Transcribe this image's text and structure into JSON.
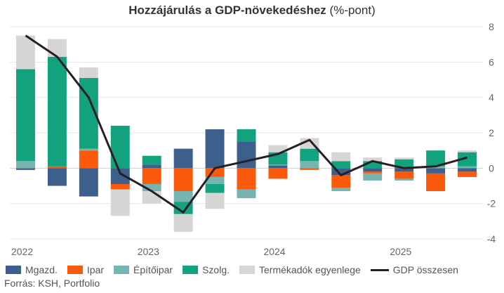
{
  "title": {
    "bold": "Hozzájárulás a GDP-növekedéshez",
    "normal": "(%-pont)"
  },
  "source": "Forrás: KSH, Portfolio",
  "colors": {
    "mgazd": "#3c5f8c",
    "ipar": "#fb5a0c",
    "epitoipar": "#76b4b2",
    "szolg": "#12a27d",
    "termekadok": "#d6d6d6",
    "gdp": "#2a1d24",
    "grid": "#e6e6e6",
    "zero": "#cfcfcf",
    "tick": "#666666"
  },
  "chart_data": {
    "type": "bar",
    "stacked": true,
    "categories": [
      "2022Q1",
      "2022Q2",
      "2022Q3",
      "2022Q4",
      "2023Q1",
      "2023Q2",
      "2023Q3",
      "2023Q4",
      "2024Q1",
      "2024Q2",
      "2024Q3",
      "2024Q4",
      "2025Q1",
      "2025Q2",
      "2025Q3"
    ],
    "year_labels": [
      {
        "label": "2022",
        "index": 0
      },
      {
        "label": "2023",
        "index": 4
      },
      {
        "label": "2024",
        "index": 8
      },
      {
        "label": "2025",
        "index": 12
      }
    ],
    "ylim": [
      -4,
      8
    ],
    "yticks": [
      -4,
      -2,
      0,
      2,
      4,
      6,
      8
    ],
    "y_axis_position": "right",
    "grid": true,
    "legend_position": "bottom",
    "series": [
      {
        "name": "Mgazd.",
        "color_key": "mgazd",
        "values": [
          -0.1,
          -1.0,
          -1.6,
          -0.9,
          0.2,
          1.1,
          2.2,
          1.5,
          0.15,
          0.0,
          -0.4,
          -0.2,
          -0.2,
          -0.3,
          -0.2
        ]
      },
      {
        "name": "Ipar",
        "color_key": "ipar",
        "values": [
          0.0,
          0.1,
          1.0,
          -0.3,
          -0.9,
          -1.3,
          -0.5,
          -1.2,
          -0.6,
          -0.1,
          -0.7,
          -0.1,
          -0.4,
          -1.0,
          -0.3
        ]
      },
      {
        "name": "Építőipar",
        "color_key": "epitoipar",
        "values": [
          0.4,
          0.0,
          0.1,
          0.0,
          -0.4,
          -0.6,
          -0.4,
          -0.5,
          0.05,
          0.4,
          -0.2,
          -0.4,
          -0.1,
          0.1,
          0.1
        ]
      },
      {
        "name": "Szolg.",
        "color_key": "szolg",
        "values": [
          5.2,
          6.2,
          4.0,
          2.4,
          0.5,
          -0.7,
          -0.5,
          0.7,
          0.7,
          0.7,
          0.4,
          0.4,
          0.5,
          0.9,
          0.8
        ]
      },
      {
        "name": "Termékadók egyenlege",
        "color_key": "termekadok",
        "values": [
          1.9,
          1.0,
          0.6,
          -1.5,
          -0.7,
          -1.0,
          -0.9,
          0.0,
          0.4,
          0.6,
          0.5,
          0.2,
          0.1,
          0.0,
          0.1
        ]
      }
    ],
    "line": {
      "name": "GDP összesen",
      "color_key": "gdp",
      "values": [
        7.5,
        6.3,
        4.0,
        -0.3,
        -1.3,
        -2.5,
        0.0,
        0.4,
        0.8,
        1.6,
        -0.4,
        0.4,
        0.0,
        0.1,
        0.6
      ]
    }
  }
}
